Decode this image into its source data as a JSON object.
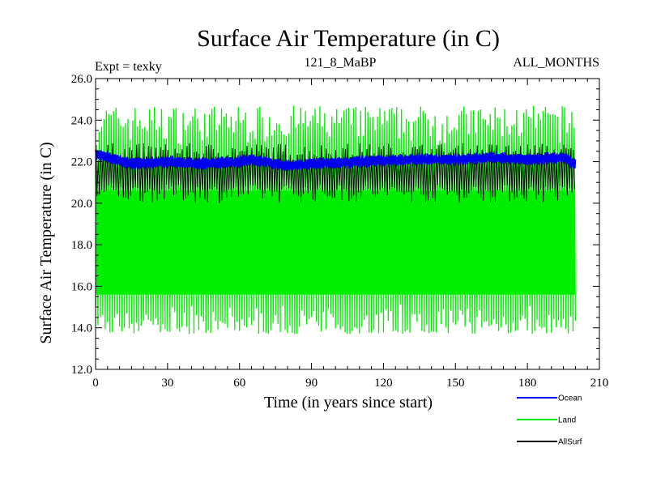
{
  "chart_data": {
    "type": "line",
    "title": "Surface Air Temperature (in C)",
    "subtitle_left": "Expt = texky",
    "subtitle_center": "121_8_MaBP",
    "subtitle_right": "ALL_MONTHS",
    "xlabel": "Time (in years since start)",
    "ylabel": "Surface Air Temperature (in C)",
    "xlim": [
      0,
      210
    ],
    "ylim": [
      12.0,
      26.0
    ],
    "x_ticks": [
      0,
      30,
      60,
      90,
      120,
      150,
      180,
      210
    ],
    "x_tick_labels": [
      "0",
      "30",
      "60",
      "90",
      "120",
      "150",
      "180",
      "210"
    ],
    "y_ticks": [
      12,
      14,
      16,
      18,
      20,
      22,
      24,
      26
    ],
    "y_tick_labels": [
      "12.0",
      "14.0",
      "16.0",
      "18.0",
      "20.0",
      "22.0",
      "24.0",
      "26.0"
    ],
    "x_data_end": 200,
    "series": [
      {
        "name": "Land",
        "color": "#00ee00",
        "style": "monthly seasonal cycle",
        "annual_max_range": [
          22.8,
          24.7
        ],
        "annual_min_range": [
          13.7,
          15.2
        ]
      },
      {
        "name": "AllSurf",
        "color": "#000000",
        "style": "monthly seasonal cycle",
        "annual_max_range": [
          22.0,
          22.9
        ],
        "annual_min_range": [
          20.0,
          20.9
        ]
      },
      {
        "name": "Ocean",
        "color": "#0000ee",
        "style": "monthly band",
        "band_center_by_year": [
          [
            0,
            22.4
          ],
          [
            5,
            22.2
          ],
          [
            15,
            21.9
          ],
          [
            30,
            22.0
          ],
          [
            45,
            21.9
          ],
          [
            60,
            22.0
          ],
          [
            65,
            22.1
          ],
          [
            80,
            21.8
          ],
          [
            90,
            21.9
          ],
          [
            110,
            22.0
          ],
          [
            130,
            22.1
          ],
          [
            150,
            22.1
          ],
          [
            165,
            22.2
          ],
          [
            180,
            22.1
          ],
          [
            195,
            22.2
          ],
          [
            199,
            21.9
          ]
        ],
        "band_half_width": 0.22
      }
    ],
    "legend": [
      {
        "name": "Ocean",
        "color": "#0000ee"
      },
      {
        "name": "Land",
        "color": "#00ee00"
      },
      {
        "name": "AllSurf",
        "color": "#000000"
      }
    ],
    "legend_position": "bottom-right"
  }
}
